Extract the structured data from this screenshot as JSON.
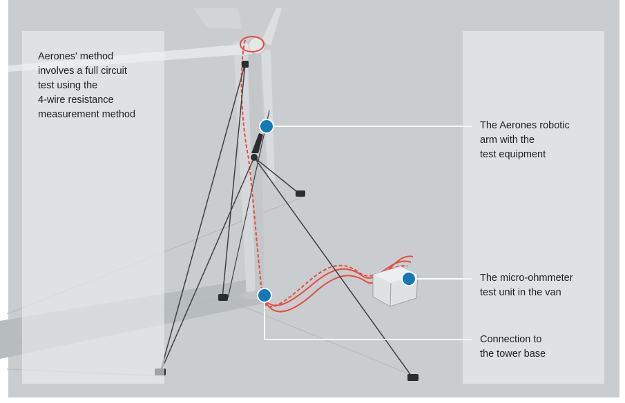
{
  "colors": {
    "background": "#c9cdcf",
    "panel": "#eef0f1",
    "accent_marker": "#1279b6",
    "cable_red": "#e84a3e",
    "text": "#1c1f21"
  },
  "method_note": {
    "line1": "Aerones' method",
    "line2": "involves a full circuit",
    "line3": "test using the",
    "line4": "4-wire resistance",
    "line5": "measurement method"
  },
  "callouts": {
    "robotic_arm": {
      "line1": "The Aerones robotic",
      "line2": "arm with the",
      "line3": "test equipment"
    },
    "micro_ohmmeter": {
      "line1": "The micro-ohmmeter",
      "line2": "test unit in the van"
    },
    "tower_base": {
      "line1": "Connection to",
      "line2": "the tower base"
    }
  },
  "icons": [
    "wind-turbine-illustration",
    "van-icon",
    "marker-dot"
  ]
}
